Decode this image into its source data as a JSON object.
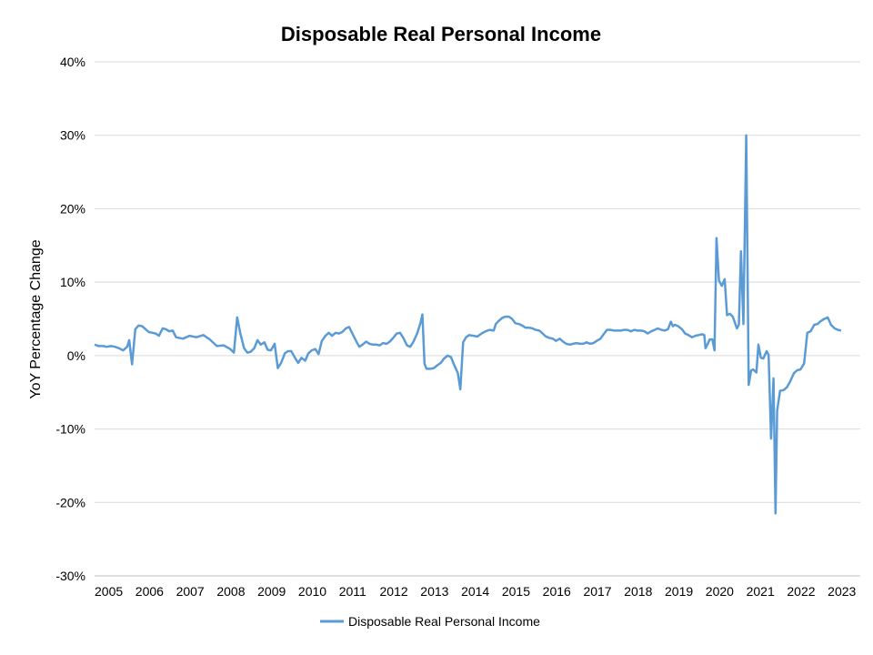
{
  "chart_data": {
    "type": "line",
    "title": "Disposable Real Personal Income",
    "xlabel": "",
    "ylabel": "YoY Percentage Change",
    "xlim": [
      2005.0,
      2023.8
    ],
    "ylim": [
      -30,
      40
    ],
    "y_ticks": [
      "40%",
      "30%",
      "20%",
      "10%",
      "0%",
      "-10%",
      "-20%",
      "-30%"
    ],
    "x_ticks": [
      "2005",
      "2006",
      "2007",
      "2008",
      "2009",
      "2010",
      "2011",
      "2012",
      "2013",
      "2014",
      "2015",
      "2016",
      "2017",
      "2018",
      "2019",
      "2020",
      "2021",
      "2022",
      "2023"
    ],
    "grid": "horizontal",
    "legend_position": "bottom-center",
    "series": [
      {
        "name": "Disposable Real Personal Income",
        "color": "#5b9bd5",
        "points": [
          [
            2005.0,
            1.5
          ],
          [
            2005.1,
            1.3
          ],
          [
            2005.2,
            1.3
          ],
          [
            2005.3,
            1.2
          ],
          [
            2005.4,
            1.3
          ],
          [
            2005.5,
            1.2
          ],
          [
            2005.6,
            1.0
          ],
          [
            2005.7,
            0.7
          ],
          [
            2005.8,
            1.2
          ],
          [
            2005.85,
            2.1
          ],
          [
            2005.92,
            -1.2
          ],
          [
            2006.0,
            3.6
          ],
          [
            2006.08,
            4.1
          ],
          [
            2006.17,
            4.0
          ],
          [
            2006.25,
            3.6
          ],
          [
            2006.33,
            3.2
          ],
          [
            2006.42,
            3.1
          ],
          [
            2006.5,
            3.0
          ],
          [
            2006.58,
            2.7
          ],
          [
            2006.67,
            3.7
          ],
          [
            2006.75,
            3.6
          ],
          [
            2006.83,
            3.3
          ],
          [
            2006.92,
            3.4
          ],
          [
            2007.0,
            2.5
          ],
          [
            2007.17,
            2.3
          ],
          [
            2007.33,
            2.7
          ],
          [
            2007.5,
            2.5
          ],
          [
            2007.67,
            2.8
          ],
          [
            2007.83,
            2.2
          ],
          [
            2008.0,
            1.3
          ],
          [
            2008.17,
            1.4
          ],
          [
            2008.33,
            0.9
          ],
          [
            2008.42,
            0.4
          ],
          [
            2008.5,
            5.2
          ],
          [
            2008.58,
            3.0
          ],
          [
            2008.67,
            1.0
          ],
          [
            2008.75,
            0.4
          ],
          [
            2008.83,
            0.5
          ],
          [
            2008.92,
            1.0
          ],
          [
            2009.0,
            2.1
          ],
          [
            2009.08,
            1.5
          ],
          [
            2009.17,
            1.8
          ],
          [
            2009.25,
            0.8
          ],
          [
            2009.33,
            0.7
          ],
          [
            2009.42,
            1.6
          ],
          [
            2009.5,
            -1.7
          ],
          [
            2009.58,
            -1.0
          ],
          [
            2009.67,
            0.3
          ],
          [
            2009.75,
            0.6
          ],
          [
            2009.83,
            0.6
          ],
          [
            2009.92,
            -0.3
          ],
          [
            2010.0,
            -1.0
          ],
          [
            2010.08,
            -0.3
          ],
          [
            2010.17,
            -0.7
          ],
          [
            2010.25,
            0.3
          ],
          [
            2010.33,
            0.7
          ],
          [
            2010.42,
            0.9
          ],
          [
            2010.5,
            0.2
          ],
          [
            2010.58,
            2.0
          ],
          [
            2010.67,
            2.7
          ],
          [
            2010.75,
            3.1
          ],
          [
            2010.83,
            2.7
          ],
          [
            2010.92,
            3.1
          ],
          [
            2011.0,
            3.0
          ],
          [
            2011.08,
            3.2
          ],
          [
            2011.17,
            3.7
          ],
          [
            2011.25,
            3.9
          ],
          [
            2011.33,
            3.0
          ],
          [
            2011.42,
            2.0
          ],
          [
            2011.5,
            1.2
          ],
          [
            2011.58,
            1.5
          ],
          [
            2011.67,
            1.9
          ],
          [
            2011.75,
            1.6
          ],
          [
            2011.83,
            1.5
          ],
          [
            2011.92,
            1.5
          ],
          [
            2012.0,
            1.4
          ],
          [
            2012.08,
            1.7
          ],
          [
            2012.17,
            1.6
          ],
          [
            2012.25,
            1.9
          ],
          [
            2012.33,
            2.4
          ],
          [
            2012.42,
            3.0
          ],
          [
            2012.5,
            3.1
          ],
          [
            2012.58,
            2.4
          ],
          [
            2012.67,
            1.4
          ],
          [
            2012.75,
            1.2
          ],
          [
            2012.83,
            1.9
          ],
          [
            2012.92,
            3.0
          ],
          [
            2013.0,
            4.4
          ],
          [
            2013.05,
            5.6
          ],
          [
            2013.1,
            -1.1
          ],
          [
            2013.15,
            -1.8
          ],
          [
            2013.25,
            -1.8
          ],
          [
            2013.33,
            -1.7
          ],
          [
            2013.42,
            -1.3
          ],
          [
            2013.5,
            -1.0
          ],
          [
            2013.58,
            -0.4
          ],
          [
            2013.67,
            0.0
          ],
          [
            2013.75,
            -0.2
          ],
          [
            2013.83,
            -1.3
          ],
          [
            2013.92,
            -2.4
          ],
          [
            2013.98,
            -4.6
          ],
          [
            2014.05,
            1.8
          ],
          [
            2014.12,
            2.5
          ],
          [
            2014.2,
            2.8
          ],
          [
            2014.3,
            2.7
          ],
          [
            2014.4,
            2.6
          ],
          [
            2014.5,
            3.0
          ],
          [
            2014.6,
            3.3
          ],
          [
            2014.7,
            3.5
          ],
          [
            2014.8,
            3.4
          ],
          [
            2014.85,
            4.3
          ],
          [
            2014.92,
            4.7
          ],
          [
            2015.0,
            5.1
          ],
          [
            2015.08,
            5.3
          ],
          [
            2015.17,
            5.3
          ],
          [
            2015.25,
            5.0
          ],
          [
            2015.33,
            4.4
          ],
          [
            2015.42,
            4.3
          ],
          [
            2015.5,
            4.1
          ],
          [
            2015.58,
            3.8
          ],
          [
            2015.67,
            3.8
          ],
          [
            2015.75,
            3.7
          ],
          [
            2015.83,
            3.5
          ],
          [
            2015.92,
            3.4
          ],
          [
            2016.0,
            3.0
          ],
          [
            2016.08,
            2.6
          ],
          [
            2016.17,
            2.4
          ],
          [
            2016.25,
            2.3
          ],
          [
            2016.33,
            2.0
          ],
          [
            2016.42,
            2.3
          ],
          [
            2016.5,
            1.9
          ],
          [
            2016.58,
            1.6
          ],
          [
            2016.67,
            1.5
          ],
          [
            2016.75,
            1.6
          ],
          [
            2016.83,
            1.7
          ],
          [
            2016.92,
            1.6
          ],
          [
            2017.0,
            1.6
          ],
          [
            2017.08,
            1.8
          ],
          [
            2017.17,
            1.6
          ],
          [
            2017.25,
            1.7
          ],
          [
            2017.33,
            2.0
          ],
          [
            2017.42,
            2.3
          ],
          [
            2017.5,
            2.9
          ],
          [
            2017.58,
            3.5
          ],
          [
            2017.67,
            3.5
          ],
          [
            2017.75,
            3.4
          ],
          [
            2017.83,
            3.4
          ],
          [
            2017.92,
            3.4
          ],
          [
            2018.0,
            3.5
          ],
          [
            2018.08,
            3.5
          ],
          [
            2018.17,
            3.3
          ],
          [
            2018.25,
            3.5
          ],
          [
            2018.33,
            3.4
          ],
          [
            2018.42,
            3.4
          ],
          [
            2018.5,
            3.3
          ],
          [
            2018.58,
            3.0
          ],
          [
            2018.67,
            3.3
          ],
          [
            2018.75,
            3.5
          ],
          [
            2018.83,
            3.7
          ],
          [
            2018.92,
            3.5
          ],
          [
            2019.0,
            3.4
          ],
          [
            2019.08,
            3.6
          ],
          [
            2019.15,
            4.6
          ],
          [
            2019.2,
            4.0
          ],
          [
            2019.25,
            4.2
          ],
          [
            2019.33,
            4.0
          ],
          [
            2019.42,
            3.6
          ],
          [
            2019.5,
            3.0
          ],
          [
            2019.58,
            2.8
          ],
          [
            2019.67,
            2.5
          ],
          [
            2019.75,
            2.7
          ],
          [
            2019.83,
            2.8
          ],
          [
            2019.92,
            2.9
          ],
          [
            2019.97,
            2.8
          ],
          [
            2020.0,
            1.0
          ],
          [
            2020.05,
            1.5
          ],
          [
            2020.1,
            2.2
          ],
          [
            2020.17,
            2.2
          ],
          [
            2020.22,
            0.7
          ],
          [
            2020.27,
            16.0
          ],
          [
            2020.33,
            10.2
          ],
          [
            2020.4,
            9.5
          ],
          [
            2020.47,
            10.4
          ],
          [
            2020.53,
            5.5
          ],
          [
            2020.6,
            5.7
          ],
          [
            2020.67,
            5.3
          ],
          [
            2020.72,
            4.5
          ],
          [
            2020.77,
            3.7
          ],
          [
            2020.82,
            4.2
          ],
          [
            2020.87,
            14.2
          ],
          [
            2020.93,
            4.3
          ],
          [
            2021.0,
            30.0
          ],
          [
            2021.06,
            -4.0
          ],
          [
            2021.12,
            -2.0
          ],
          [
            2021.17,
            -1.9
          ],
          [
            2021.25,
            -2.3
          ],
          [
            2021.3,
            1.5
          ],
          [
            2021.36,
            -0.3
          ],
          [
            2021.42,
            -0.4
          ],
          [
            2021.5,
            0.6
          ],
          [
            2021.55,
            0.1
          ],
          [
            2021.61,
            -11.3
          ],
          [
            2021.67,
            -3.1
          ],
          [
            2021.72,
            -21.5
          ],
          [
            2021.76,
            -7.5
          ],
          [
            2021.83,
            -4.8
          ],
          [
            2021.92,
            -4.7
          ],
          [
            2022.0,
            -4.3
          ],
          [
            2022.08,
            -3.5
          ],
          [
            2022.17,
            -2.4
          ],
          [
            2022.25,
            -2.0
          ],
          [
            2022.33,
            -1.9
          ],
          [
            2022.42,
            -1.1
          ],
          [
            2022.5,
            3.1
          ],
          [
            2022.58,
            3.3
          ],
          [
            2022.67,
            4.2
          ],
          [
            2022.75,
            4.3
          ],
          [
            2022.83,
            4.7
          ],
          [
            2022.92,
            5.0
          ],
          [
            2023.0,
            5.2
          ],
          [
            2023.08,
            4.2
          ],
          [
            2023.17,
            3.7
          ],
          [
            2023.25,
            3.5
          ],
          [
            2023.33,
            3.4
          ]
        ]
      }
    ]
  }
}
